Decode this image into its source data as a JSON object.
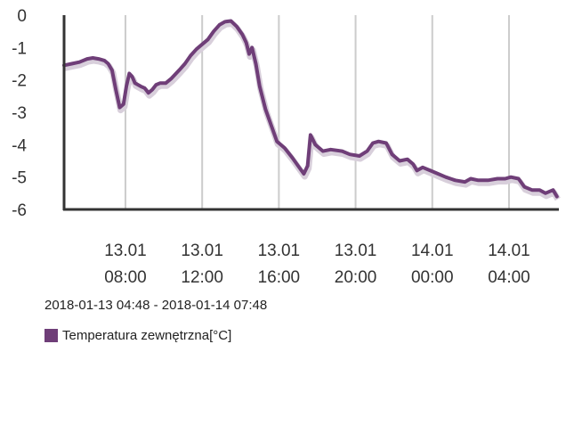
{
  "chart_data": {
    "type": "line",
    "y_ticks": [
      "0",
      "-1",
      "-2",
      "-3",
      "-4",
      "-5",
      "-6"
    ],
    "ylim": [
      -6,
      0
    ],
    "x_ticks": [
      {
        "hour": 8,
        "line1": "13.01",
        "line2": "08:00"
      },
      {
        "hour": 12,
        "line1": "13.01",
        "line2": "12:00"
      },
      {
        "hour": 16,
        "line1": "13.01",
        "line2": "16:00"
      },
      {
        "hour": 20,
        "line1": "13.01",
        "line2": "20:00"
      },
      {
        "hour": 24,
        "line1": "14.01",
        "line2": "00:00"
      },
      {
        "hour": 28,
        "line1": "14.01",
        "line2": "04:00"
      }
    ],
    "grid": {
      "vertical": true,
      "horizontal": false
    },
    "date_range": "2018-01-13 04:48 - 2018-01-14 07:48",
    "series": [
      {
        "name": "Temperatura zewnętrzna[°C]",
        "color": "#6f3e78",
        "points": [
          [
            4.8,
            -1.55
          ],
          [
            5.2,
            -1.5
          ],
          [
            5.6,
            -1.45
          ],
          [
            6.0,
            -1.35
          ],
          [
            6.3,
            -1.32
          ],
          [
            6.6,
            -1.35
          ],
          [
            6.9,
            -1.4
          ],
          [
            7.1,
            -1.5
          ],
          [
            7.3,
            -1.7
          ],
          [
            7.5,
            -2.3
          ],
          [
            7.7,
            -2.85
          ],
          [
            7.9,
            -2.75
          ],
          [
            8.05,
            -2.2
          ],
          [
            8.2,
            -1.8
          ],
          [
            8.35,
            -1.9
          ],
          [
            8.5,
            -2.1
          ],
          [
            8.8,
            -2.2
          ],
          [
            9.0,
            -2.25
          ],
          [
            9.2,
            -2.4
          ],
          [
            9.4,
            -2.3
          ],
          [
            9.6,
            -2.15
          ],
          [
            9.8,
            -2.1
          ],
          [
            10.1,
            -2.1
          ],
          [
            10.4,
            -1.95
          ],
          [
            10.8,
            -1.7
          ],
          [
            11.1,
            -1.5
          ],
          [
            11.4,
            -1.25
          ],
          [
            11.7,
            -1.05
          ],
          [
            12.0,
            -0.9
          ],
          [
            12.3,
            -0.75
          ],
          [
            12.6,
            -0.5
          ],
          [
            12.9,
            -0.3
          ],
          [
            13.2,
            -0.2
          ],
          [
            13.5,
            -0.18
          ],
          [
            13.8,
            -0.35
          ],
          [
            14.1,
            -0.6
          ],
          [
            14.3,
            -0.85
          ],
          [
            14.45,
            -1.2
          ],
          [
            14.6,
            -1.0
          ],
          [
            14.8,
            -1.5
          ],
          [
            15.0,
            -2.2
          ],
          [
            15.3,
            -2.9
          ],
          [
            15.6,
            -3.4
          ],
          [
            15.9,
            -3.9
          ],
          [
            16.3,
            -4.1
          ],
          [
            16.7,
            -4.4
          ],
          [
            17.0,
            -4.65
          ],
          [
            17.3,
            -4.9
          ],
          [
            17.5,
            -4.65
          ],
          [
            17.65,
            -3.7
          ],
          [
            17.9,
            -4.0
          ],
          [
            18.3,
            -4.2
          ],
          [
            18.7,
            -4.15
          ],
          [
            19.3,
            -4.2
          ],
          [
            19.7,
            -4.3
          ],
          [
            20.2,
            -4.35
          ],
          [
            20.6,
            -4.2
          ],
          [
            20.9,
            -3.95
          ],
          [
            21.2,
            -3.9
          ],
          [
            21.6,
            -3.95
          ],
          [
            21.9,
            -4.3
          ],
          [
            22.3,
            -4.5
          ],
          [
            22.7,
            -4.45
          ],
          [
            23.0,
            -4.6
          ],
          [
            23.2,
            -4.8
          ],
          [
            23.5,
            -4.7
          ],
          [
            23.9,
            -4.8
          ],
          [
            24.3,
            -4.9
          ],
          [
            24.7,
            -5.0
          ],
          [
            25.2,
            -5.1
          ],
          [
            25.7,
            -5.15
          ],
          [
            26.0,
            -5.05
          ],
          [
            26.4,
            -5.1
          ],
          [
            26.9,
            -5.1
          ],
          [
            27.4,
            -5.05
          ],
          [
            27.8,
            -5.05
          ],
          [
            28.1,
            -5.0
          ],
          [
            28.5,
            -5.05
          ],
          [
            28.8,
            -5.3
          ],
          [
            29.2,
            -5.4
          ],
          [
            29.6,
            -5.4
          ],
          [
            29.9,
            -5.5
          ],
          [
            30.3,
            -5.4
          ],
          [
            30.5,
            -5.6
          ]
        ]
      }
    ]
  }
}
